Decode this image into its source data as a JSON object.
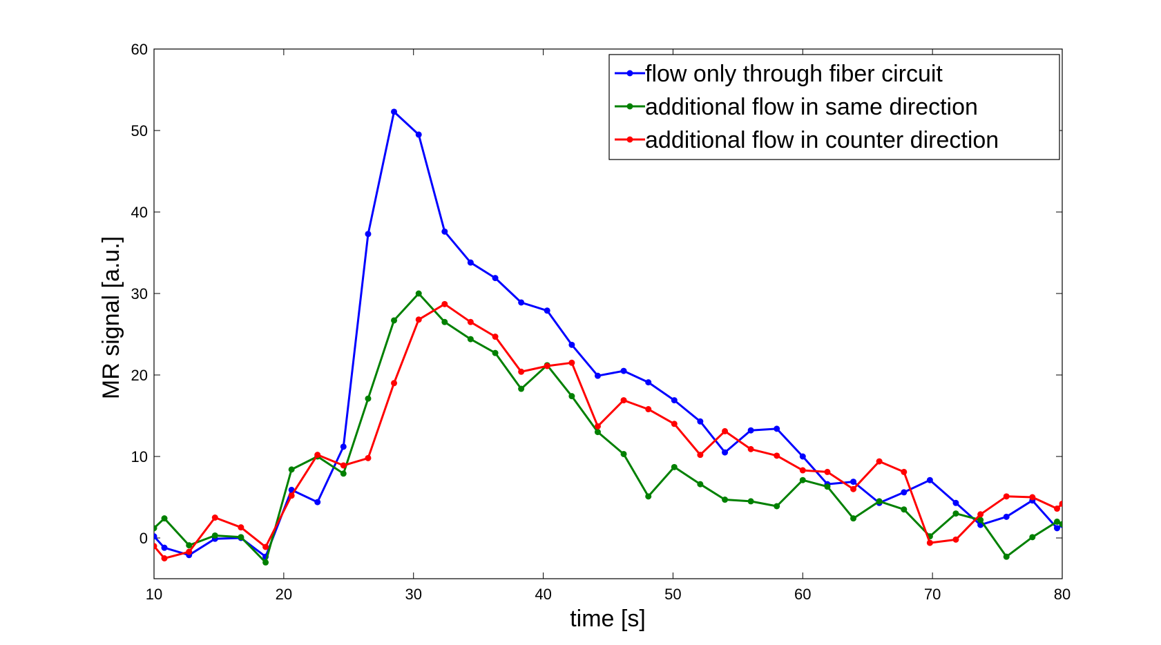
{
  "chart_data": {
    "type": "line",
    "title": "",
    "xlabel": "time [s]",
    "ylabel": "MR signal [a.u.]",
    "xlim": [
      10,
      80
    ],
    "ylim": [
      -5,
      60
    ],
    "xticks": [
      10,
      20,
      30,
      40,
      50,
      60,
      70,
      80
    ],
    "yticks": [
      0,
      10,
      20,
      30,
      40,
      50,
      60
    ],
    "grid": false,
    "legend_position": "top-right",
    "x": [
      10,
      10.8,
      12.7,
      14.7,
      16.7,
      18.6,
      20.6,
      22.6,
      24.6,
      26.5,
      28.5,
      30.4,
      32.4,
      34.4,
      36.3,
      38.3,
      40.3,
      42.2,
      44.2,
      46.2,
      48.1,
      50.1,
      52.1,
      54.0,
      56.0,
      58.0,
      60.0,
      61.9,
      63.9,
      65.9,
      67.8,
      69.8,
      71.8,
      73.7,
      75.7,
      77.7,
      79.6,
      80
    ],
    "series": [
      {
        "name": "flow only through fiber circuit",
        "color": "#0000ff",
        "values": [
          0.2,
          -1.2,
          -2.1,
          -0.1,
          0.0,
          -2.3,
          5.9,
          4.4,
          11.2,
          37.3,
          52.3,
          49.5,
          37.6,
          33.8,
          31.9,
          28.9,
          27.9,
          23.7,
          19.9,
          20.5,
          19.1,
          16.9,
          14.3,
          10.5,
          13.2,
          13.4,
          10.0,
          6.6,
          6.9,
          4.3,
          5.6,
          7.1,
          4.3,
          1.6,
          2.6,
          4.6,
          1.2,
          1.6
        ]
      },
      {
        "name": "additional flow in same direction",
        "color": "#008000",
        "values": [
          1.2,
          2.4,
          -0.9,
          0.3,
          0.1,
          -3.0,
          8.4,
          10.0,
          7.9,
          17.1,
          26.7,
          30.0,
          26.5,
          24.4,
          22.7,
          18.3,
          21.2,
          17.4,
          13.0,
          10.3,
          5.1,
          8.7,
          6.6,
          4.7,
          4.5,
          3.9,
          7.1,
          6.3,
          2.4,
          4.5,
          3.5,
          0.2,
          3.0,
          2.2,
          -2.3,
          0.1,
          2.0,
          1.7
        ]
      },
      {
        "name": "additional flow in counter direction",
        "color": "#ff0000",
        "values": [
          -1.0,
          -2.5,
          -1.7,
          2.5,
          1.3,
          -1.1,
          5.2,
          10.2,
          8.9,
          9.8,
          19.0,
          26.8,
          28.7,
          26.5,
          24.7,
          20.4,
          21.1,
          21.5,
          13.7,
          16.9,
          15.8,
          14.0,
          10.2,
          13.1,
          10.9,
          10.1,
          8.3,
          8.1,
          6.0,
          9.4,
          8.1,
          -0.6,
          -0.2,
          2.9,
          5.1,
          5.0,
          3.6,
          4.2
        ]
      }
    ]
  }
}
